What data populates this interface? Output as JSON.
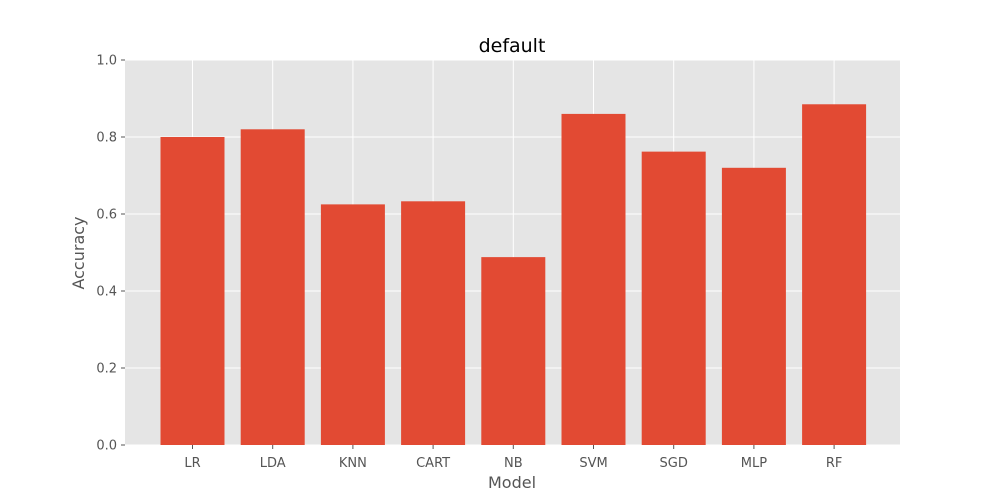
{
  "chart_data": {
    "type": "bar",
    "title": "default",
    "xlabel": "Model",
    "ylabel": "Accuracy",
    "categories": [
      "LR",
      "LDA",
      "KNN",
      "CART",
      "NB",
      "SVM",
      "SGD",
      "MLP",
      "RF"
    ],
    "values": [
      0.8,
      0.82,
      0.625,
      0.633,
      0.488,
      0.86,
      0.762,
      0.72,
      0.885
    ],
    "ylim": [
      0,
      1.0
    ],
    "yticks": [
      "0.0",
      "0.2",
      "0.4",
      "0.6",
      "0.8",
      "1.0"
    ],
    "grid": true,
    "legend": "none",
    "colors": {
      "bar": "#E24A33",
      "plot_background": "#E5E5E5",
      "grid": "#FFFFFF"
    }
  }
}
